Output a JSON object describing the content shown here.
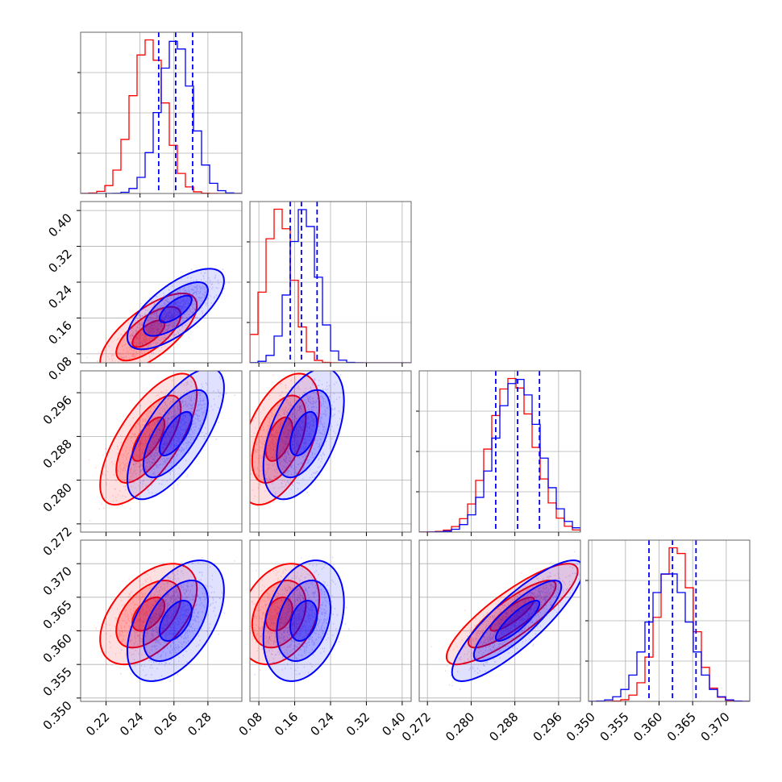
{
  "chart_data": {
    "type": "corner",
    "params": [
      {
        "range": [
          0.205,
          0.3
        ],
        "ticks": [
          0.22,
          0.24,
          0.26,
          0.28
        ],
        "tick_labels": [
          "0.22",
          "0.24",
          "0.26",
          "0.28"
        ]
      },
      {
        "range": [
          0.06,
          0.42
        ],
        "ticks": [
          0.08,
          0.16,
          0.24,
          0.32,
          0.4
        ],
        "tick_labels": [
          "0.08",
          "0.16",
          "0.24",
          "0.32",
          "0.40"
        ]
      },
      {
        "range": [
          0.2705,
          0.3
        ],
        "ticks": [
          0.272,
          0.28,
          0.288,
          0.296
        ],
        "tick_labels": [
          "0.272",
          "0.280",
          "0.288",
          "0.296"
        ]
      },
      {
        "range": [
          0.3495,
          0.3735
        ],
        "ticks": [
          0.35,
          0.355,
          0.36,
          0.365,
          0.37
        ],
        "tick_labels": [
          "0.350",
          "0.355",
          "0.360",
          "0.365",
          "0.370"
        ]
      }
    ],
    "series": [
      {
        "color": "#ff0000",
        "mean": [
          0.245,
          0.125,
          0.2875,
          0.3625
        ],
        "sigma": [
          0.0095,
          0.03,
          0.004,
          0.0025
        ],
        "corr": {
          "0-1": 0.7,
          "0-2": 0.7,
          "0-3": 0.5,
          "1-2": 0.5,
          "1-3": 0.3,
          "2-3": 0.85
        }
      },
      {
        "color": "#0000ff",
        "mean": [
          0.261,
          0.18,
          0.2885,
          0.3615
        ],
        "sigma": [
          0.0095,
          0.03,
          0.004,
          0.003
        ],
        "corr": {
          "0-1": 0.7,
          "0-2": 0.7,
          "0-3": 0.5,
          "1-2": 0.5,
          "1-3": 0.3,
          "2-3": 0.85
        }
      }
    ],
    "quantile_lines": {
      "color": "#0000ff",
      "values": [
        [
          0.251,
          0.261,
          0.271
        ],
        [
          0.15,
          0.175,
          0.21
        ],
        [
          0.2845,
          0.2885,
          0.2925
        ],
        [
          0.3585,
          0.362,
          0.3655
        ]
      ]
    },
    "histogram_bins": 20,
    "grid": true
  }
}
